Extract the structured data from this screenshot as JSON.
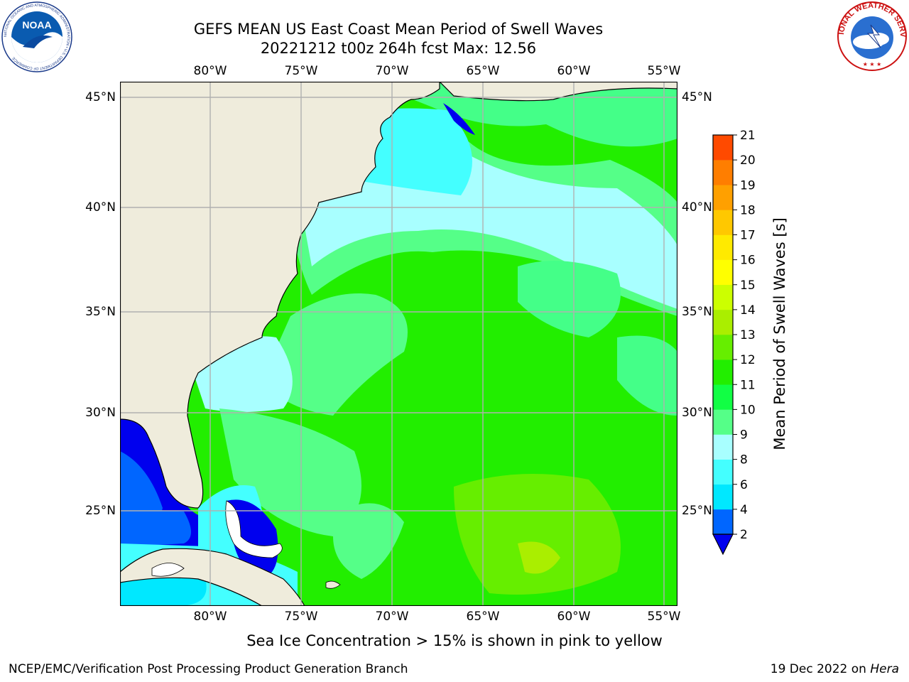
{
  "header": {
    "title_line1": "GEFS MEAN US East Coast Mean Period of Swell Waves",
    "title_line2": "20221212 t00z 264h fcst   Max: 12.56"
  },
  "logos": {
    "left": {
      "name": "NOAA",
      "ring_text": "NATIONAL OCEANIC AND ATMOSPHERIC ADMINISTRATION • U.S. DEPARTMENT OF COMMERCE"
    },
    "right": {
      "name": "NATIONAL WEATHER SERVICE"
    }
  },
  "map": {
    "lon_labels": [
      "80°W",
      "75°W",
      "70°W",
      "65°W",
      "60°W",
      "55°W"
    ],
    "lat_labels": [
      "45°N",
      "40°N",
      "35°N",
      "30°N",
      "25°N"
    ],
    "lon_values": [
      -80,
      -75,
      -70,
      -65,
      -60,
      -55
    ],
    "lat_values": [
      45,
      40,
      35,
      30,
      25
    ],
    "extent": {
      "lon_min": -85,
      "lon_max": -54.3,
      "lat_min": 20.5,
      "lat_max": 46
    },
    "land_color": "#efecdc",
    "grid_color": "#b0b0b0"
  },
  "colorbar": {
    "title": "Mean Period of Swell Waves [s]",
    "labels": [
      "2",
      "4",
      "6",
      "8",
      "9",
      "10",
      "11",
      "12",
      "13",
      "14",
      "15",
      "16",
      "17",
      "18",
      "19",
      "20",
      "21"
    ],
    "colors": [
      "#0066ff",
      "#00e8ff",
      "#44ffff",
      "#a8ffff",
      "#55ff88",
      "#11ff44",
      "#22ee00",
      "#66ee00",
      "#aaee00",
      "#ccff00",
      "#ffff00",
      "#ffea00",
      "#ffc800",
      "#ffa000",
      "#ff7e00",
      "#ff4a00",
      "#ff0000"
    ],
    "underflow_color": "#0000ee"
  },
  "notes": {
    "sea_ice": "Sea Ice Concentration > 15% is shown in pink to yellow"
  },
  "footer": {
    "left": "NCEP/EMC/Verification Post Processing Product Generation Branch",
    "right_date": "19 Dec 2022 on ",
    "right_machine": "Hera"
  }
}
